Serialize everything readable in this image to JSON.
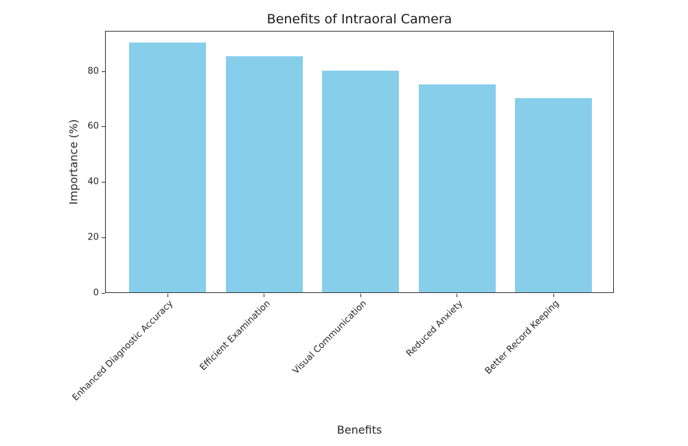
{
  "chart_data": {
    "type": "bar",
    "title": "Benefits of Intraoral Camera",
    "xlabel": "Benefits",
    "ylabel": "Importance (%)",
    "categories": [
      "Enhanced Diagnostic Accuracy",
      "Efficient Examination",
      "Visual Communication",
      "Reduced Anxiety",
      "Better Record Keeping"
    ],
    "values": [
      90,
      85,
      80,
      75,
      70
    ],
    "ylim": [
      0,
      94.5
    ],
    "yticks": [
      0,
      20,
      40,
      60,
      80
    ],
    "bar_color": "#87ceeb",
    "grid": false,
    "legend": null
  }
}
